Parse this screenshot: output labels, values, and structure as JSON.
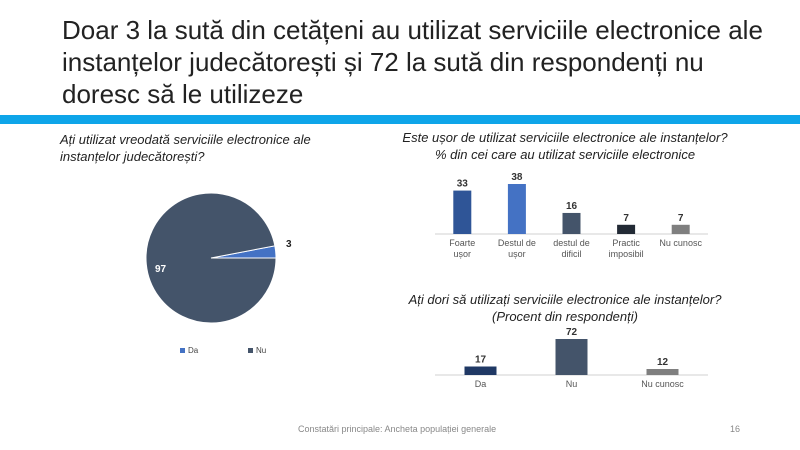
{
  "slide": {
    "title": "Doar 3 la sută din cetățeni au utilizat serviciile electronice ale instanțelor judecătorești și 72 la sută din respondenți nu doresc să le utilizeze",
    "footer": "Constatări principale: Ancheta populației generale",
    "page_number": "16",
    "band_color": "#0ea5e9"
  },
  "chart_data": [
    {
      "type": "pie",
      "title": "Ați utilizat vreodată serviciile electronice ale instanțelor judecătorești?",
      "categories": [
        "Da",
        "Nu"
      ],
      "values": [
        3,
        97
      ],
      "colors": [
        "#4472c4",
        "#44546a"
      ],
      "legend": "bottom"
    },
    {
      "type": "bar",
      "title": "Este ușor de utilizat serviciile electronice ale instanțelor?\n% din cei care au utilizat serviciile electronice",
      "categories": [
        "Foarte ușor",
        "Destul de ușor",
        "destul de dificil",
        "Practic imposibil",
        "Nu cunosc"
      ],
      "values": [
        33,
        38,
        16,
        7,
        7
      ],
      "colors": [
        "#2f5597",
        "#4472c4",
        "#44546a",
        "#222a35",
        "#7f7f7f"
      ],
      "ylim": [
        0,
        38
      ]
    },
    {
      "type": "bar",
      "title": "Ați dori să utilizați serviciile electronice ale instanțelor?\n(Procent din respondenți)",
      "categories": [
        "Da",
        "Nu",
        "Nu cunosc"
      ],
      "values": [
        17,
        72,
        12
      ],
      "colors": [
        "#1f3864",
        "#44546a",
        "#7f7f7f"
      ],
      "ylim": [
        0,
        72
      ]
    }
  ]
}
